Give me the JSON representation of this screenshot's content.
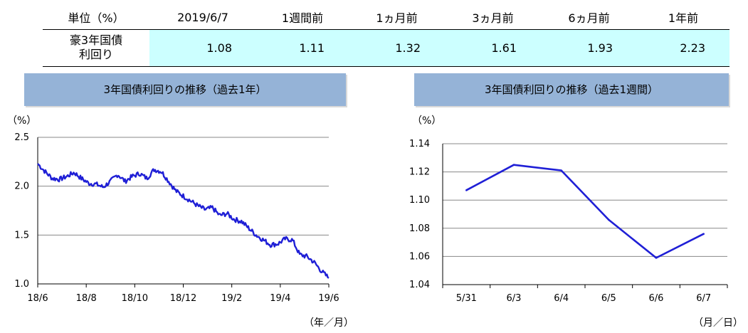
{
  "table": {
    "headers": [
      "単位（%）",
      "2019/6/7",
      "1週間前",
      "1ヵ月前",
      "3ヵ月前",
      "6ヵ月前",
      "1年前"
    ],
    "row_label_line1": "豪3年国債",
    "row_label_line2": "利回り",
    "values": [
      "1.08",
      "1.11",
      "1.32",
      "1.61",
      "1.93",
      "2.23"
    ]
  },
  "chart_data": [
    {
      "type": "line",
      "title": "3年国債利回りの推移（過去1年）",
      "ylabel": "（%）",
      "xlabel": "（年／月）",
      "ylim": [
        1.0,
        2.5
      ],
      "yticks": [
        "1.0",
        "1.5",
        "2.0",
        "2.5"
      ],
      "xticks": [
        "18/6",
        "18/8",
        "18/10",
        "18/12",
        "19/2",
        "19/4",
        "19/6"
      ],
      "grid": true,
      "color": "#1f1fd6",
      "series": [
        {
          "x_unit": "months since 2018/6",
          "x": [
            0,
            0.3,
            0.6,
            0.9,
            1.2,
            1.5,
            1.8,
            2.1,
            2.4,
            2.7,
            3.0,
            3.3,
            3.6,
            3.9,
            4.2,
            4.5,
            4.8,
            5.1,
            5.4,
            5.7,
            6.0,
            6.3,
            6.6,
            6.9,
            7.2,
            7.5,
            7.8,
            8.1,
            8.4,
            8.7,
            9.0,
            9.3,
            9.6,
            9.9,
            10.2,
            10.5,
            10.8,
            11.1,
            11.4,
            11.7,
            12.0
          ],
          "values": [
            2.23,
            2.15,
            2.08,
            2.07,
            2.1,
            2.14,
            2.08,
            2.03,
            2.02,
            1.99,
            2.05,
            2.12,
            2.05,
            2.1,
            2.13,
            2.08,
            2.17,
            2.15,
            2.05,
            1.95,
            1.9,
            1.85,
            1.8,
            1.76,
            1.78,
            1.7,
            1.72,
            1.66,
            1.64,
            1.57,
            1.5,
            1.45,
            1.4,
            1.41,
            1.46,
            1.45,
            1.3,
            1.28,
            1.22,
            1.13,
            1.06
          ]
        }
      ]
    },
    {
      "type": "line",
      "title": "3年国債利回りの推移（過去1週間）",
      "ylabel": "（%）",
      "xlabel": "（月／日）",
      "ylim": [
        1.04,
        1.14
      ],
      "yticks": [
        "1.04",
        "1.06",
        "1.08",
        "1.10",
        "1.12",
        "1.14"
      ],
      "categories": [
        "5/31",
        "6/3",
        "6/4",
        "6/5",
        "6/6",
        "6/7"
      ],
      "grid": true,
      "color": "#1f1fd6",
      "series": [
        {
          "values": [
            1.107,
            1.125,
            1.121,
            1.086,
            1.059,
            1.076
          ]
        }
      ]
    }
  ]
}
